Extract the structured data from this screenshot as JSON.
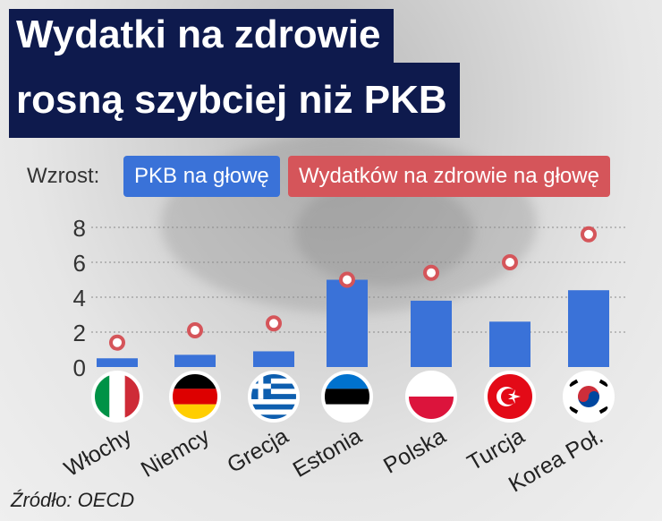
{
  "title": {
    "line1": "Wydatki na zdrowie",
    "line2": "rosną szybciej niż PKB"
  },
  "legend": {
    "prefix": "Wzrost:",
    "series1": "PKB na głowę",
    "series2": "Wydatków na zdrowie na głowę"
  },
  "source": "Źródło: OECD",
  "colors": {
    "bar": "#3a72d8",
    "dot": "#d5555a",
    "title_bg": "#0e1a4d"
  },
  "chart_data": {
    "type": "bar",
    "categories": [
      "Włochy",
      "Niemcy",
      "Grecja",
      "Estonia",
      "Polska",
      "Turcja",
      "Korea Poł."
    ],
    "flags": [
      "italy-flag-icon",
      "germany-flag-icon",
      "greece-flag-icon",
      "estonia-flag-icon",
      "poland-flag-icon",
      "turkey-flag-icon",
      "south-korea-flag-icon"
    ],
    "series": [
      {
        "name": "PKB na głowę",
        "mark": "bar",
        "values": [
          0.5,
          0.7,
          0.9,
          5.0,
          3.8,
          2.6,
          4.4
        ]
      },
      {
        "name": "Wydatków na zdrowie na głowę",
        "mark": "dot",
        "values": [
          1.4,
          2.1,
          2.5,
          5.0,
          5.4,
          6.0,
          7.6
        ]
      }
    ],
    "yticks": [
      0,
      2,
      4,
      6,
      8
    ],
    "ylim": [
      0,
      8
    ],
    "grid": true,
    "legend_position": "top"
  }
}
